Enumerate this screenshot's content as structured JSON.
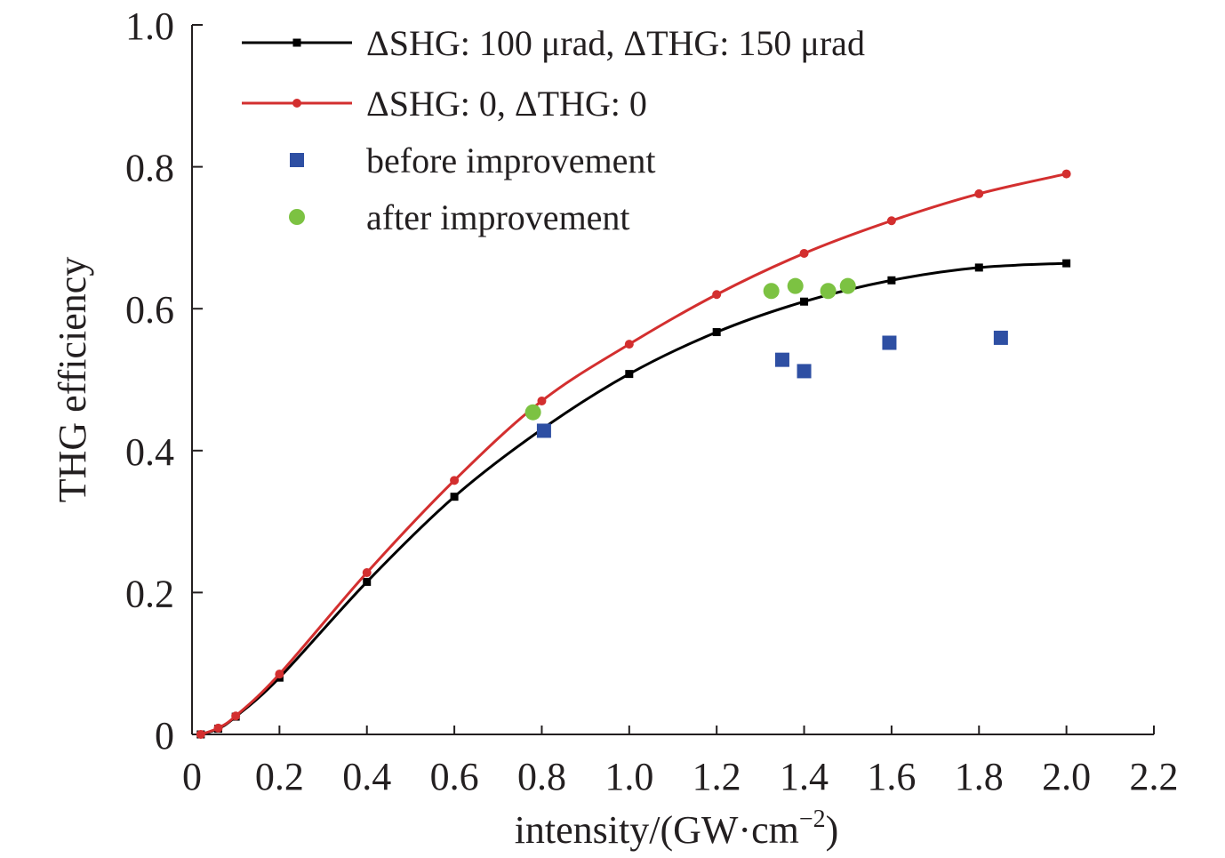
{
  "chart_data": {
    "type": "line",
    "xlabel": "intensity/(GW·cm",
    "xlabel_superscript": "−2",
    "xlabel_suffix": ")",
    "ylabel": "THG efficiency",
    "xlim": [
      0,
      2.2
    ],
    "ylim": [
      0,
      1.0
    ],
    "xticks": [
      {
        "value": 0,
        "label": "0"
      },
      {
        "value": 0.2,
        "label": "0.2"
      },
      {
        "value": 0.4,
        "label": "0.4"
      },
      {
        "value": 0.6,
        "label": "0.6"
      },
      {
        "value": 0.8,
        "label": "0.8"
      },
      {
        "value": 1.0,
        "label": "1.0"
      },
      {
        "value": 1.2,
        "label": "1.2"
      },
      {
        "value": 1.4,
        "label": "1.4"
      },
      {
        "value": 1.6,
        "label": "1.6"
      },
      {
        "value": 1.8,
        "label": "1.8"
      },
      {
        "value": 2.0,
        "label": "2.0"
      },
      {
        "value": 2.2,
        "label": "2.2"
      }
    ],
    "yticks": [
      {
        "value": 0,
        "label": "0"
      },
      {
        "value": 0.2,
        "label": "0.2"
      },
      {
        "value": 0.4,
        "label": "0.4"
      },
      {
        "value": 0.6,
        "label": "0.6"
      },
      {
        "value": 0.8,
        "label": "0.8"
      },
      {
        "value": 1.0,
        "label": "1.0"
      }
    ],
    "grid": false,
    "legend_position": "top-left",
    "series": [
      {
        "name": "ΔSHG: 100 μrad, ΔTHG: 150 μrad",
        "kind": "line",
        "marker": "square",
        "color": "#000000",
        "x": [
          0.02,
          0.06,
          0.1,
          0.2,
          0.4,
          0.6,
          0.8,
          1.0,
          1.2,
          1.4,
          1.6,
          1.8,
          2.0
        ],
        "y": [
          0.0,
          0.008,
          0.025,
          0.08,
          0.215,
          0.335,
          0.43,
          0.508,
          0.567,
          0.61,
          0.64,
          0.658,
          0.664
        ]
      },
      {
        "name": "ΔSHG: 0, ΔTHG: 0",
        "kind": "line",
        "marker": "circle",
        "color": "#d32f2f",
        "x": [
          0.02,
          0.06,
          0.1,
          0.2,
          0.4,
          0.6,
          0.8,
          1.0,
          1.2,
          1.4,
          1.6,
          1.8,
          2.0
        ],
        "y": [
          0.0,
          0.009,
          0.026,
          0.085,
          0.228,
          0.358,
          0.47,
          0.55,
          0.62,
          0.678,
          0.724,
          0.762,
          0.79
        ]
      },
      {
        "name": "before improvement",
        "kind": "scatter",
        "marker": "square",
        "color": "#2e4fa3",
        "x": [
          0.805,
          1.35,
          1.4,
          1.595,
          1.85
        ],
        "y": [
          0.428,
          0.528,
          0.512,
          0.552,
          0.559
        ]
      },
      {
        "name": "after improvement",
        "kind": "scatter",
        "marker": "circle",
        "color": "#7cc242",
        "x": [
          0.78,
          1.325,
          1.38,
          1.455,
          1.5
        ],
        "y": [
          0.454,
          0.625,
          0.632,
          0.625,
          0.632
        ]
      }
    ]
  }
}
